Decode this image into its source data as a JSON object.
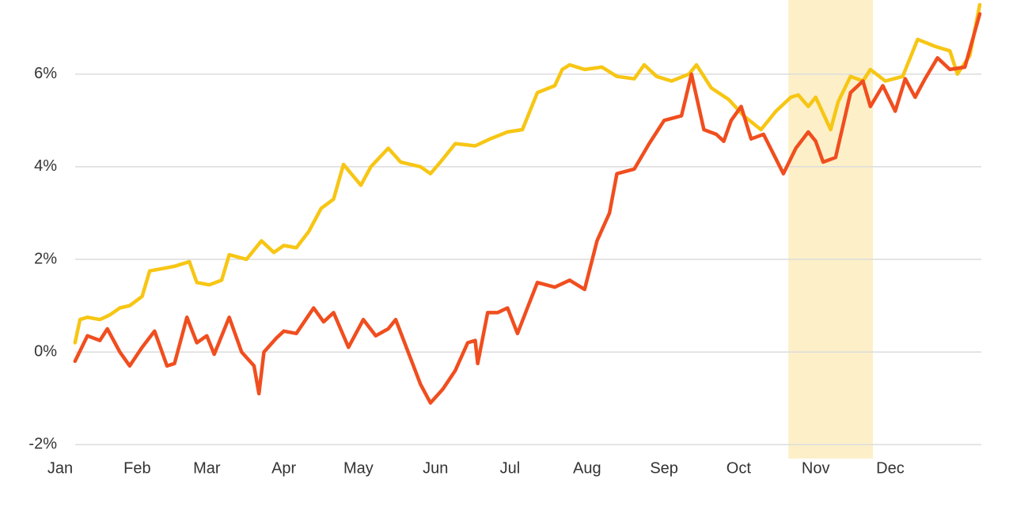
{
  "chart_data": {
    "type": "line",
    "xlim": [
      0,
      370
    ],
    "xticks": [
      {
        "value": 0,
        "label": "Jan"
      },
      {
        "value": 31,
        "label": "Feb"
      },
      {
        "value": 59,
        "label": "Mar"
      },
      {
        "value": 90,
        "label": "Apr"
      },
      {
        "value": 120,
        "label": "May"
      },
      {
        "value": 151,
        "label": "Jun"
      },
      {
        "value": 181,
        "label": "Jul"
      },
      {
        "value": 212,
        "label": "Aug"
      },
      {
        "value": 243,
        "label": "Sep"
      },
      {
        "value": 273,
        "label": "Oct"
      },
      {
        "value": 304,
        "label": "Nov"
      },
      {
        "value": 334,
        "label": "Dec"
      }
    ],
    "ylim": [
      -2.25,
      7.6
    ],
    "yticks": [
      {
        "value": -2,
        "label": "-2%"
      },
      {
        "value": 0,
        "label": "0%"
      },
      {
        "value": 2,
        "label": "2%"
      },
      {
        "value": 4,
        "label": "4%"
      },
      {
        "value": 6,
        "label": "6%"
      }
    ],
    "grid": true,
    "highlight": [
      293,
      327
    ],
    "highlight_color": "#fdf0c8",
    "series": [
      {
        "color": "#f7c614",
        "x": [
          6,
          8,
          11,
          16,
          20,
          24,
          28,
          33,
          36,
          41,
          46,
          52,
          55,
          60,
          65,
          68,
          75,
          81,
          86,
          90,
          95,
          100,
          105,
          110,
          114,
          121,
          125,
          132,
          137,
          145,
          149,
          153,
          159,
          167,
          173,
          180,
          186,
          192,
          199,
          202,
          205,
          211,
          218,
          224,
          231,
          235,
          240,
          246,
          253,
          256,
          262,
          269,
          275,
          282,
          288,
          294,
          297,
          301,
          304,
          310,
          313,
          318,
          323,
          326,
          332,
          339,
          345,
          352,
          358,
          361,
          366,
          370
        ],
        "values": [
          0.2,
          0.7,
          0.75,
          0.7,
          0.8,
          0.95,
          1.0,
          1.2,
          1.75,
          1.8,
          1.85,
          1.95,
          1.5,
          1.45,
          1.55,
          2.1,
          2.0,
          2.4,
          2.15,
          2.3,
          2.25,
          2.6,
          3.1,
          3.3,
          4.05,
          3.6,
          4.0,
          4.4,
          4.1,
          4.0,
          3.85,
          4.1,
          4.5,
          4.45,
          4.6,
          4.75,
          4.8,
          5.6,
          5.75,
          6.1,
          6.2,
          6.1,
          6.15,
          5.95,
          5.9,
          6.2,
          5.95,
          5.85,
          6.0,
          6.2,
          5.7,
          5.45,
          5.1,
          4.8,
          5.2,
          5.5,
          5.55,
          5.3,
          5.5,
          4.8,
          5.4,
          5.95,
          5.85,
          6.1,
          5.85,
          5.95,
          6.75,
          6.6,
          6.5,
          6.0,
          6.4,
          7.5
        ]
      },
      {
        "color": "#f04e1f",
        "x": [
          6,
          11,
          16,
          19,
          24,
          28,
          33,
          38,
          43,
          46,
          51,
          55,
          59,
          62,
          68,
          73,
          78,
          80,
          82,
          87,
          90,
          95,
          102,
          106,
          110,
          116,
          122,
          127,
          132,
          135,
          140,
          145,
          149,
          154,
          159,
          164,
          167,
          168,
          172,
          176,
          180,
          184,
          188,
          192,
          199,
          205,
          211,
          216,
          221,
          224,
          231,
          237,
          243,
          250,
          254,
          259,
          264,
          267,
          270,
          274,
          278,
          283,
          291,
          296,
          301,
          304,
          307,
          312,
          315,
          318,
          323,
          326,
          331,
          336,
          340,
          344,
          348,
          353,
          358,
          364,
          370
        ],
        "values": [
          -0.2,
          0.35,
          0.25,
          0.5,
          0.0,
          -0.3,
          0.1,
          0.45,
          -0.3,
          -0.25,
          0.75,
          0.2,
          0.35,
          -0.05,
          0.75,
          0.0,
          -0.3,
          -0.9,
          0.0,
          0.3,
          0.45,
          0.4,
          0.95,
          0.65,
          0.85,
          0.1,
          0.7,
          0.35,
          0.5,
          0.7,
          0.0,
          -0.7,
          -1.1,
          -0.8,
          -0.4,
          0.2,
          0.25,
          -0.25,
          0.85,
          0.85,
          0.95,
          0.4,
          0.95,
          1.5,
          1.4,
          1.55,
          1.35,
          2.4,
          3.0,
          3.85,
          3.95,
          4.5,
          5.0,
          5.1,
          6.0,
          4.8,
          4.7,
          4.55,
          5.0,
          5.3,
          4.6,
          4.7,
          3.85,
          4.4,
          4.75,
          4.55,
          4.1,
          4.2,
          4.9,
          5.6,
          5.85,
          5.3,
          5.75,
          5.2,
          5.9,
          5.5,
          5.9,
          6.35,
          6.1,
          6.15,
          7.3
        ]
      }
    ]
  }
}
